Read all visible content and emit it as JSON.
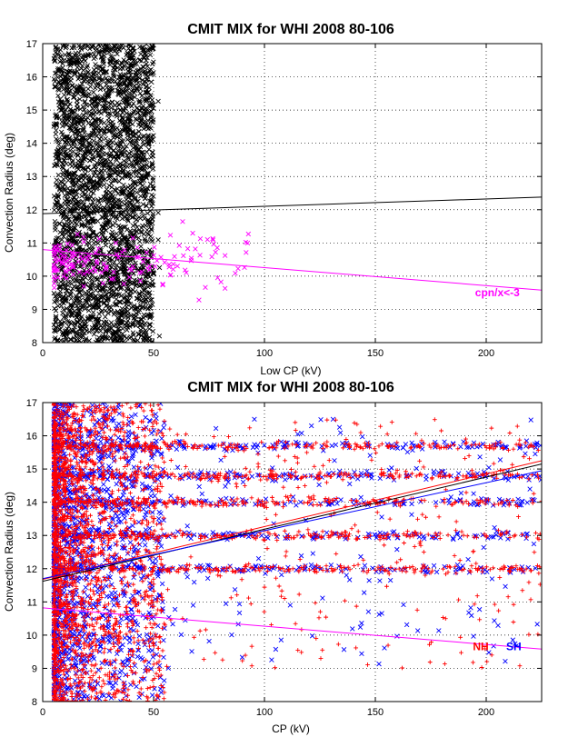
{
  "chart_data": [
    {
      "type": "scatter",
      "title": "CMIT MIX for WHI 2008 80-106",
      "xlabel": "Low CP (kV)",
      "ylabel": "Convection Radius (deg)",
      "xlim": [
        0,
        225
      ],
      "ylim": [
        8,
        17
      ],
      "xticks": [
        0,
        50,
        100,
        150,
        200
      ],
      "yticks": [
        8,
        9,
        10,
        11,
        12,
        13,
        14,
        15,
        16,
        17
      ],
      "grid": true,
      "annotations": [
        {
          "text": "cpn/x<-3",
          "color": "#ff00ff",
          "x": 195,
          "y": 9.4
        }
      ],
      "series": [
        {
          "marker": "x",
          "color": "#000000",
          "x_range": [
            5,
            54
          ],
          "y_range": [
            8,
            17
          ],
          "points": 3000
        },
        {
          "marker": "x",
          "color": "#ff00ff",
          "x_range": [
            5,
            93
          ],
          "y_range": [
            8.8,
            12.3
          ],
          "points": 160
        }
      ],
      "fit_lines": [
        {
          "color": "#000000",
          "x": [
            0,
            225
          ],
          "y": [
            11.88,
            12.38
          ]
        },
        {
          "color": "#ff00ff",
          "x": [
            0,
            225
          ],
          "y": [
            10.8,
            9.58
          ]
        }
      ]
    },
    {
      "type": "scatter",
      "title": "CMIT MIX for WHI 2008 80-106",
      "xlabel": "CP (kV)",
      "ylabel": "Convection Radius (deg)",
      "xlim": [
        0,
        225
      ],
      "ylim": [
        8,
        17
      ],
      "xticks": [
        0,
        50,
        100,
        150,
        200
      ],
      "yticks": [
        8,
        9,
        10,
        11,
        12,
        13,
        14,
        15,
        16,
        17
      ],
      "grid": true,
      "annotations": [
        {
          "text": "NH",
          "color": "#ff0000",
          "x": 194,
          "y": 9.55
        },
        {
          "text": "SH",
          "color": "#0000ff",
          "x": 209,
          "y": 9.55
        }
      ],
      "series": [
        {
          "name": "SH",
          "marker": "x",
          "color": "#0000ff",
          "x_range": [
            5,
            225
          ],
          "y_range": [
            8,
            17
          ],
          "points": 2200
        },
        {
          "name": "NH",
          "marker": "+",
          "color": "#ff0000",
          "x_range": [
            5,
            225
          ],
          "y_range": [
            8,
            17
          ],
          "points": 3200
        }
      ],
      "bands": [
        12,
        13,
        14,
        14.8,
        15.7
      ],
      "fit_lines": [
        {
          "color": "#ff0000",
          "x": [
            0,
            225
          ],
          "y": [
            11.68,
            15.25
          ]
        },
        {
          "color": "#000000",
          "x": [
            0,
            225
          ],
          "y": [
            11.62,
            15.15
          ]
        },
        {
          "color": "#0000ff",
          "x": [
            0,
            225
          ],
          "y": [
            11.7,
            14.95
          ]
        },
        {
          "color": "#ff00ff",
          "x": [
            0,
            225
          ],
          "y": [
            10.82,
            9.58
          ]
        }
      ]
    }
  ]
}
